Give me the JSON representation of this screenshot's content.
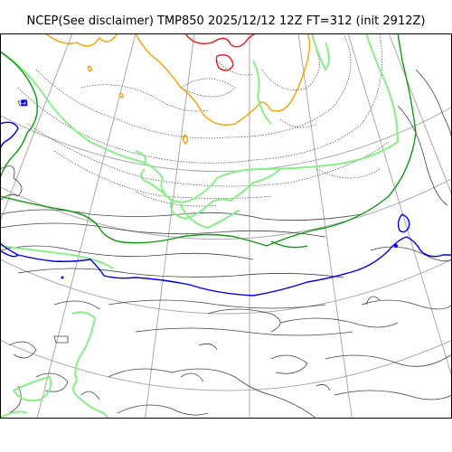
{
  "title": "NCEP(See disclaimer) TMP850 2025/12/12 12Z FT=312 (init 2912Z)",
  "colors": {
    "grid": "#aaaaaa",
    "coast": "#444444",
    "dotted": "#444444",
    "contour_red": "#ee1111",
    "contour_orange": "#f5a000",
    "contour_lightgreen": "#88ee88",
    "contour_green": "#119911",
    "contour_blue": "#0000ee",
    "frame": "#000000"
  }
}
